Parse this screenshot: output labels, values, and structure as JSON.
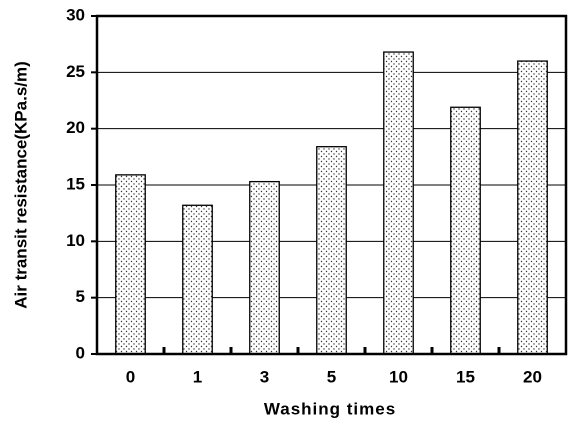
{
  "chart_data": {
    "type": "bar",
    "x_label": "Washing times",
    "y_label": "Air transit resistance(KPa.s/m)",
    "categories": [
      "0",
      "1",
      "3",
      "5",
      "10",
      "15",
      "20"
    ],
    "values": [
      15.9,
      13.2,
      15.3,
      18.4,
      26.8,
      21.9,
      26.0
    ],
    "ylim": [
      0,
      30
    ],
    "yticks": [
      0,
      5,
      10,
      15,
      20,
      25,
      30
    ],
    "grid": true
  }
}
